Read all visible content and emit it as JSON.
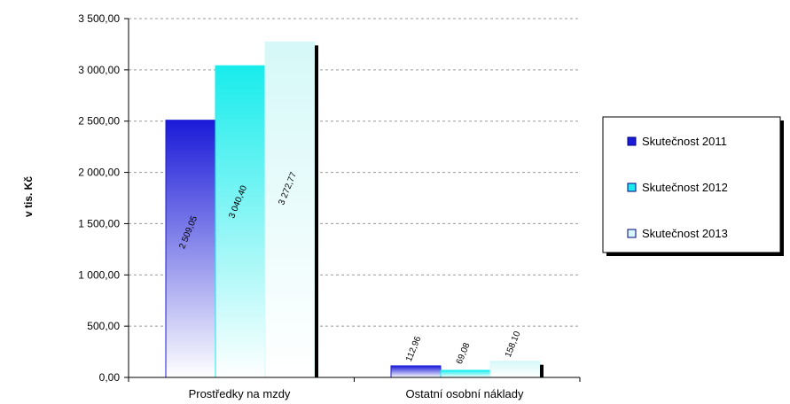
{
  "chart_data": {
    "type": "bar",
    "ylabel": "v tis. Kč",
    "xlabel": "",
    "ylim": [
      0,
      3500
    ],
    "yticks": [
      "0,00",
      "500,00",
      "1 000,00",
      "1 500,00",
      "2 000,00",
      "2 500,00",
      "3 000,00",
      "3 500,00"
    ],
    "categories": [
      "Prostředky na mzdy",
      "Ostatní osobní náklady"
    ],
    "series": [
      {
        "name": "Skutečnost 2011",
        "values": [
          2509.05,
          112.96
        ],
        "labels": [
          "2 509,05",
          "112,96"
        ],
        "color": "#1a1ad8"
      },
      {
        "name": "Skutečnost 2012",
        "values": [
          3040.4,
          69.08
        ],
        "labels": [
          "3 040,40",
          "69,08"
        ],
        "color": "#18ecec"
      },
      {
        "name": "Skutečnost 2013",
        "values": [
          3272.77,
          158.1
        ],
        "labels": [
          "3 272,77",
          "158,10"
        ],
        "color": "#d6f8f8"
      }
    ],
    "grid": true,
    "legend_position": "right"
  }
}
